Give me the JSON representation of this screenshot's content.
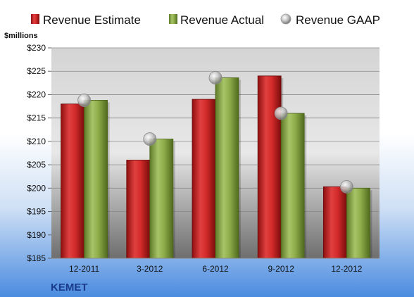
{
  "chart_data": {
    "type": "bar",
    "categories": [
      "12-2011",
      "3-2012",
      "6-2012",
      "9-2012",
      "12-2012"
    ],
    "series": [
      {
        "name": "Revenue Estimate",
        "kind": "bar",
        "values": [
          218,
          206,
          219,
          224,
          200.3
        ]
      },
      {
        "name": "Revenue Actual",
        "kind": "bar",
        "values": [
          218.8,
          210.5,
          223.6,
          216,
          200
        ]
      },
      {
        "name": "Revenue GAAP",
        "kind": "marker",
        "values": [
          218.8,
          210.5,
          223.6,
          216,
          200.3
        ]
      }
    ],
    "ylabel": "$millions",
    "ylim": [
      185,
      230
    ],
    "yticks": [
      185,
      190,
      195,
      200,
      205,
      210,
      215,
      220,
      225,
      230
    ],
    "ytick_labels": [
      "$185",
      "$190",
      "$195",
      "$200",
      "$205",
      "$210",
      "$215",
      "$220",
      "$225",
      "$230"
    ],
    "grid": true,
    "legend_position": "top",
    "company": "KEMET",
    "colors": {
      "estimate": "#d42b2b",
      "actual": "#8fae4a",
      "gaap": "#c4c4c4",
      "company": "#1a3b8c"
    }
  }
}
